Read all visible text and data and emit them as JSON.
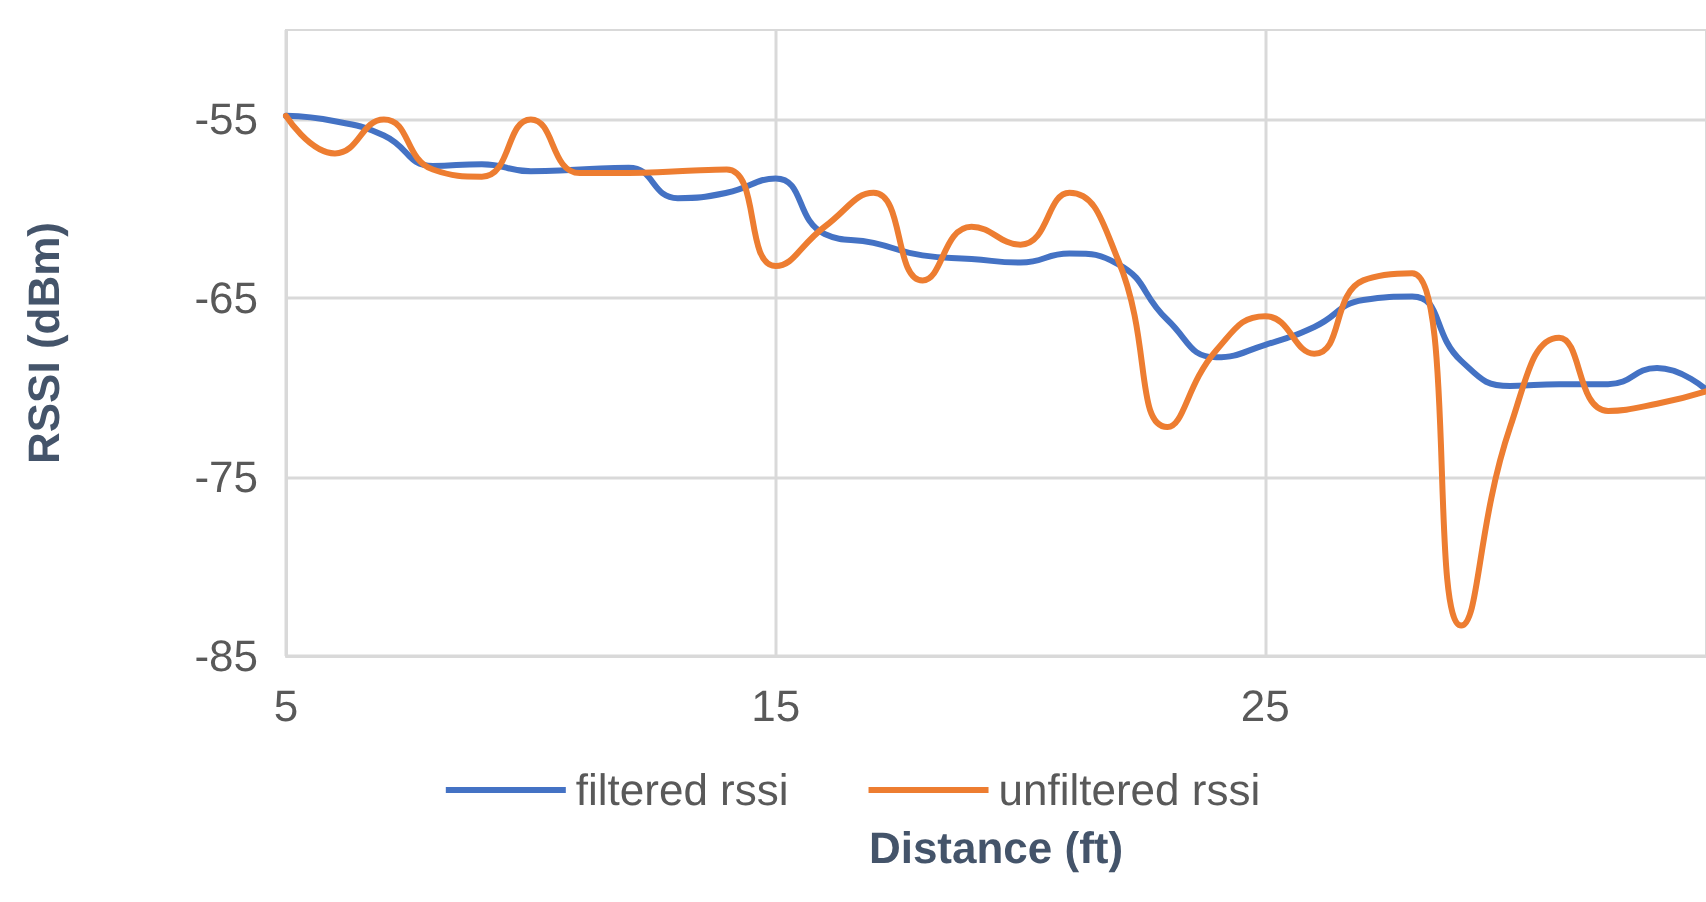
{
  "chart_data": {
    "type": "line",
    "xlabel": "Distance (ft)",
    "ylabel": "RSSI (dBm)",
    "x": [
      5,
      6,
      7,
      8,
      9,
      10,
      11,
      12,
      13,
      14,
      15,
      16,
      17,
      18,
      19,
      20,
      21,
      22,
      23,
      24,
      25,
      26,
      27,
      28,
      29,
      30,
      31,
      32,
      33,
      34
    ],
    "series": [
      {
        "name": "filtered rssi",
        "color": "#4472c4",
        "values": [
          -54.8,
          -55.1,
          -55.9,
          -57.6,
          -57.5,
          -57.9,
          -57.8,
          -57.7,
          -59.4,
          -59.1,
          -58.3,
          -61.4,
          -61.9,
          -62.6,
          -62.8,
          -63,
          -62.5,
          -63.1,
          -66.2,
          -68.3,
          -67.6,
          -66.6,
          -65.1,
          -64.9,
          -68.5,
          -69.9,
          -69.8,
          -69.8,
          -68.9,
          -70.1
        ]
      },
      {
        "name": "unfiltered rssi",
        "color": "#ed7d31",
        "values": [
          -54.8,
          -56.9,
          -55,
          -57.8,
          -58.2,
          -55,
          -58,
          -58,
          -57.9,
          -57.8,
          -63.2,
          -61,
          -59.1,
          -64,
          -61,
          -62,
          -59.1,
          -62.9,
          -72.2,
          -67.9,
          -66,
          -68.1,
          -64,
          -63.6,
          -83.3,
          -72.2,
          -67.2,
          -71.3,
          -70.9,
          -70.2
        ]
      }
    ],
    "xlim": [
      5,
      34
    ],
    "xticks": [
      5,
      15,
      25
    ],
    "ylim": [
      -85,
      -50
    ],
    "yticks": [
      -85,
      -75,
      -65,
      -55
    ],
    "grid": true,
    "legend": "bottom",
    "marker": "none",
    "line_style": "solid"
  }
}
